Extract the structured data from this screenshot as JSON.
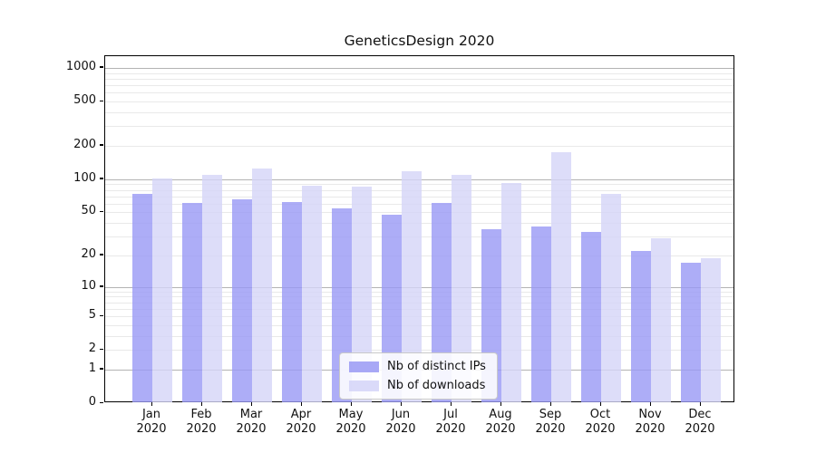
{
  "window": {
    "background": "#ffffff"
  },
  "chart_data": {
    "type": "bar",
    "title": "GeneticsDesign 2020",
    "year_label": "2020",
    "categories": [
      "Jan",
      "Feb",
      "Mar",
      "Apr",
      "May",
      "Jun",
      "Jul",
      "Aug",
      "Sep",
      "Oct",
      "Nov",
      "Dec"
    ],
    "series": [
      {
        "name": "Nb of distinct IPs",
        "color": "#9999F5",
        "values": [
          74,
          61,
          66,
          62,
          54,
          48,
          61,
          35,
          37,
          33,
          22,
          17
        ]
      },
      {
        "name": "Nb of downloads",
        "color": "#D4D4F8",
        "values": [
          102,
          110,
          126,
          87,
          85,
          117,
          110,
          92,
          176,
          74,
          29,
          19
        ]
      }
    ],
    "yticks": [
      0,
      1,
      2,
      5,
      10,
      20,
      50,
      100,
      200,
      500,
      1000
    ],
    "scale": "log1p",
    "ylim": [
      0,
      1270
    ],
    "xlabel": "",
    "ylabel": "",
    "grid": "horizontal, log major + minor",
    "legend_position": "inside-bottom-center",
    "grid_major_color": "#b3b3b3",
    "grid_minor_color": "#e9e9e9"
  }
}
